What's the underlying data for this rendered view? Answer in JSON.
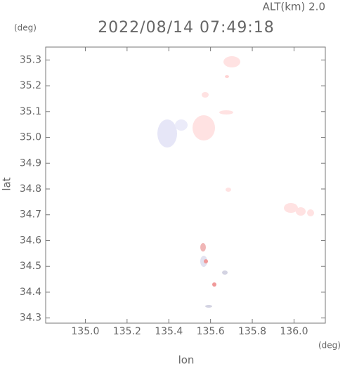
{
  "chart_data": {
    "type": "map",
    "title": "2022/08/14 07:49:18",
    "altitude_label": "ALT(km) 2.0",
    "x_unit": "(deg)",
    "y_unit": "(deg)",
    "x_label": "lon",
    "y_label": "lat",
    "xlim": [
      134.81,
      136.15
    ],
    "ylim": [
      34.28,
      35.35
    ],
    "xticks": [
      {
        "value": 135,
        "label": "135.0"
      },
      135.2,
      135.4,
      135.6,
      135.8,
      {
        "value": 136,
        "label": "136.0"
      }
    ],
    "yticks": [
      34.3,
      34.4,
      34.5,
      34.6,
      34.7,
      34.8,
      34.9,
      {
        "value": 35,
        "label": "35.0"
      },
      35.1,
      35.2,
      35.3
    ]
  }
}
